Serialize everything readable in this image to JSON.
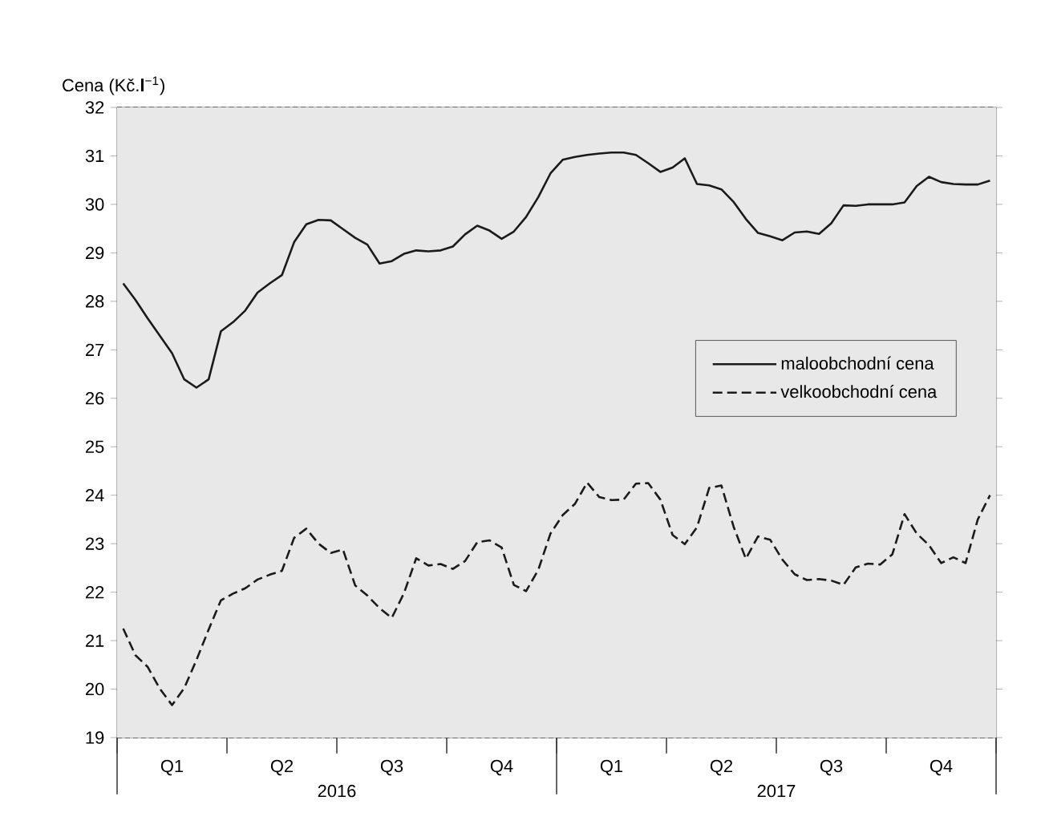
{
  "chart_data": {
    "type": "line",
    "ylabel": "Cena (Kč.**l**$^{−1}$)",
    "categories": [
      null,
      null,
      null,
      null,
      "Q1",
      null,
      null,
      null,
      null,
      null,
      null,
      null,
      null,
      "Q2",
      null,
      null,
      null,
      null,
      null,
      null,
      null,
      null,
      "Q3",
      null,
      null,
      null,
      null,
      null,
      null,
      null,
      null,
      "Q4",
      null,
      null,
      null,
      null,
      null,
      null,
      null,
      null,
      "Q1",
      null,
      null,
      null,
      null,
      null,
      null,
      null,
      null,
      "Q2",
      null,
      null,
      null,
      null,
      null,
      null,
      null,
      null,
      "Q3",
      null,
      null,
      null,
      null,
      null,
      null,
      null,
      null,
      "Q4",
      null,
      null,
      null,
      null
    ],
    "annotations": [
      "2016",
      "2017"
    ],
    "ylim": [
      19,
      32
    ],
    "yticks": [
      19,
      20,
      21,
      22,
      23,
      24,
      25,
      26,
      27,
      28,
      29,
      30,
      31,
      32
    ],
    "grid": "y",
    "legend": "right",
    "marker": "none",
    "series": [
      {
        "name": "maloobchodní cena",
        "color": "#1a1a1a",
        "line_style": "solid",
        "values": [
          28.37,
          28.03,
          27.65,
          27.29,
          26.93,
          26.39,
          26.22,
          26.39,
          27.38,
          27.57,
          27.81,
          28.18,
          28.37,
          28.54,
          29.22,
          29.59,
          29.68,
          29.67,
          29.49,
          29.31,
          29.17,
          28.78,
          28.83,
          28.98,
          29.05,
          29.03,
          29.05,
          29.13,
          29.38,
          29.56,
          29.46,
          29.29,
          29.44,
          29.74,
          30.15,
          30.64,
          30.92,
          30.98,
          31.02,
          31.05,
          31.07,
          31.07,
          31.02,
          30.85,
          30.67,
          30.76,
          30.95,
          30.42,
          30.39,
          30.31,
          30.05,
          29.7,
          29.41,
          29.34,
          29.26,
          29.42,
          29.44,
          29.39,
          29.61,
          29.98,
          29.97,
          30.0,
          30.0,
          30.0,
          30.04,
          30.38,
          30.57,
          30.46,
          30.42,
          30.41,
          30.41,
          30.49
        ]
      },
      {
        "name": "velkoobchodní cena",
        "color": "#1a1a1a",
        "line_style": "dashed",
        "values": [
          21.25,
          20.7,
          20.46,
          20.01,
          19.67,
          20.02,
          20.6,
          21.23,
          21.83,
          21.97,
          22.08,
          22.26,
          22.36,
          22.44,
          23.12,
          23.31,
          23.0,
          22.81,
          22.88,
          22.14,
          21.93,
          21.67,
          21.47,
          21.98,
          22.7,
          22.55,
          22.58,
          22.48,
          22.64,
          23.03,
          23.07,
          22.92,
          22.15,
          22.02,
          22.46,
          23.21,
          23.59,
          23.82,
          24.26,
          23.96,
          23.9,
          23.91,
          24.24,
          24.25,
          23.91,
          23.18,
          22.99,
          23.34,
          24.15,
          24.2,
          23.35,
          22.69,
          23.15,
          23.08,
          22.67,
          22.37,
          22.25,
          22.27,
          22.24,
          22.15,
          22.51,
          22.59,
          22.57,
          22.78,
          23.61,
          23.21,
          22.97,
          22.6,
          22.72,
          22.6,
          23.5,
          24.0
        ]
      }
    ]
  }
}
